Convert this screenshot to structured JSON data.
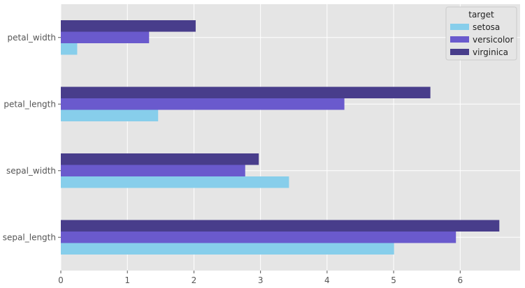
{
  "chart_data": {
    "type": "bar",
    "orientation": "horizontal",
    "categories": [
      "sepal_length",
      "sepal_width",
      "petal_length",
      "petal_width"
    ],
    "series": [
      {
        "name": "setosa",
        "color": "#87ceeb",
        "values": [
          5.006,
          3.428,
          1.462,
          0.246
        ]
      },
      {
        "name": "versicolor",
        "color": "#6a5acd",
        "values": [
          5.936,
          2.77,
          4.26,
          1.326
        ]
      },
      {
        "name": "virginica",
        "color": "#483d8b",
        "values": [
          6.588,
          2.974,
          5.552,
          2.026
        ]
      }
    ],
    "xlim": [
      0,
      6.9
    ],
    "xticks": [
      0,
      1,
      2,
      3,
      4,
      5,
      6
    ],
    "grid": true,
    "background": "#e5e5e5",
    "legend": {
      "title": "target",
      "placement": "top-right"
    }
  }
}
